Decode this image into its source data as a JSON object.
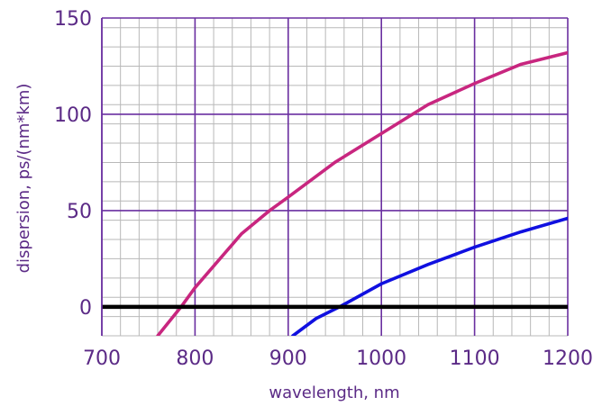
{
  "chart_data": {
    "type": "line",
    "title": "",
    "xlabel": "wavelength, nm",
    "ylabel": "dispersion, ps/(nm*km)",
    "xlim": [
      700,
      1200
    ],
    "ylim": [
      -15,
      150
    ],
    "x_major_ticks": [
      700,
      800,
      900,
      1000,
      1100,
      1200
    ],
    "y_major_ticks": [
      0,
      50,
      100,
      150
    ],
    "x_tick_labels": [
      "700",
      "800",
      "900",
      "1000",
      "1100",
      "1200"
    ],
    "y_tick_labels": [
      "0",
      "50",
      "100",
      "150"
    ],
    "x_minor_step": 20,
    "y_minor_step": 10,
    "grid": true,
    "legend": "none",
    "zero_line": {
      "y": 0,
      "color": "#000000"
    },
    "colors": {
      "major_grid": "#6a2fa0",
      "minor_grid": "#b8b8b8",
      "tick_text": "#5b2a86"
    },
    "series": [
      {
        "color": "#c8267f",
        "x": [
          760,
          785,
          800,
          850,
          880,
          900,
          950,
          1000,
          1050,
          1100,
          1150,
          1200
        ],
        "y": [
          -15,
          0,
          10,
          38,
          50,
          57,
          75,
          90,
          105,
          116,
          126,
          132
        ]
      },
      {
        "color": "#1010e0",
        "x": [
          905,
          930,
          955,
          1000,
          1050,
          1100,
          1150,
          1200
        ],
        "y": [
          -15,
          -6,
          0,
          12,
          22,
          31,
          39,
          46
        ]
      }
    ]
  }
}
